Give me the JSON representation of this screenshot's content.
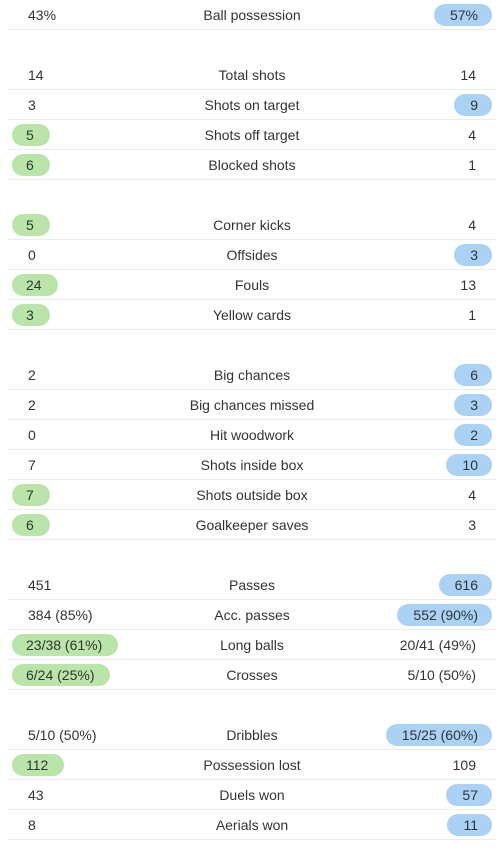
{
  "colors": {
    "home_highlight": "#b9e6a8",
    "away_highlight": "#a9d2f5"
  },
  "groups": [
    {
      "rows": [
        {
          "label": "Ball possession",
          "home": "43%",
          "away": "57%",
          "winner": "away"
        }
      ]
    },
    {
      "rows": [
        {
          "label": "Total shots",
          "home": "14",
          "away": "14",
          "winner": "none"
        },
        {
          "label": "Shots on target",
          "home": "3",
          "away": "9",
          "winner": "away"
        },
        {
          "label": "Shots off target",
          "home": "5",
          "away": "4",
          "winner": "home"
        },
        {
          "label": "Blocked shots",
          "home": "6",
          "away": "1",
          "winner": "home"
        }
      ]
    },
    {
      "rows": [
        {
          "label": "Corner kicks",
          "home": "5",
          "away": "4",
          "winner": "home"
        },
        {
          "label": "Offsides",
          "home": "0",
          "away": "3",
          "winner": "away"
        },
        {
          "label": "Fouls",
          "home": "24",
          "away": "13",
          "winner": "home"
        },
        {
          "label": "Yellow cards",
          "home": "3",
          "away": "1",
          "winner": "home"
        }
      ]
    },
    {
      "rows": [
        {
          "label": "Big chances",
          "home": "2",
          "away": "6",
          "winner": "away"
        },
        {
          "label": "Big chances missed",
          "home": "2",
          "away": "3",
          "winner": "away"
        },
        {
          "label": "Hit woodwork",
          "home": "0",
          "away": "2",
          "winner": "away"
        },
        {
          "label": "Shots inside box",
          "home": "7",
          "away": "10",
          "winner": "away"
        },
        {
          "label": "Shots outside box",
          "home": "7",
          "away": "4",
          "winner": "home"
        },
        {
          "label": "Goalkeeper saves",
          "home": "6",
          "away": "3",
          "winner": "home"
        }
      ]
    },
    {
      "rows": [
        {
          "label": "Passes",
          "home": "451",
          "away": "616",
          "winner": "away"
        },
        {
          "label": "Acc. passes",
          "home": "384 (85%)",
          "away": "552 (90%)",
          "winner": "away"
        },
        {
          "label": "Long balls",
          "home": "23/38 (61%)",
          "away": "20/41 (49%)",
          "winner": "home"
        },
        {
          "label": "Crosses",
          "home": "6/24 (25%)",
          "away": "5/10 (50%)",
          "winner": "home"
        }
      ]
    },
    {
      "rows": [
        {
          "label": "Dribbles",
          "home": "5/10 (50%)",
          "away": "15/25 (60%)",
          "winner": "away"
        },
        {
          "label": "Possession lost",
          "home": "112",
          "away": "109",
          "winner": "home"
        },
        {
          "label": "Duels won",
          "home": "43",
          "away": "57",
          "winner": "away"
        },
        {
          "label": "Aerials won",
          "home": "8",
          "away": "11",
          "winner": "away"
        }
      ]
    }
  ]
}
